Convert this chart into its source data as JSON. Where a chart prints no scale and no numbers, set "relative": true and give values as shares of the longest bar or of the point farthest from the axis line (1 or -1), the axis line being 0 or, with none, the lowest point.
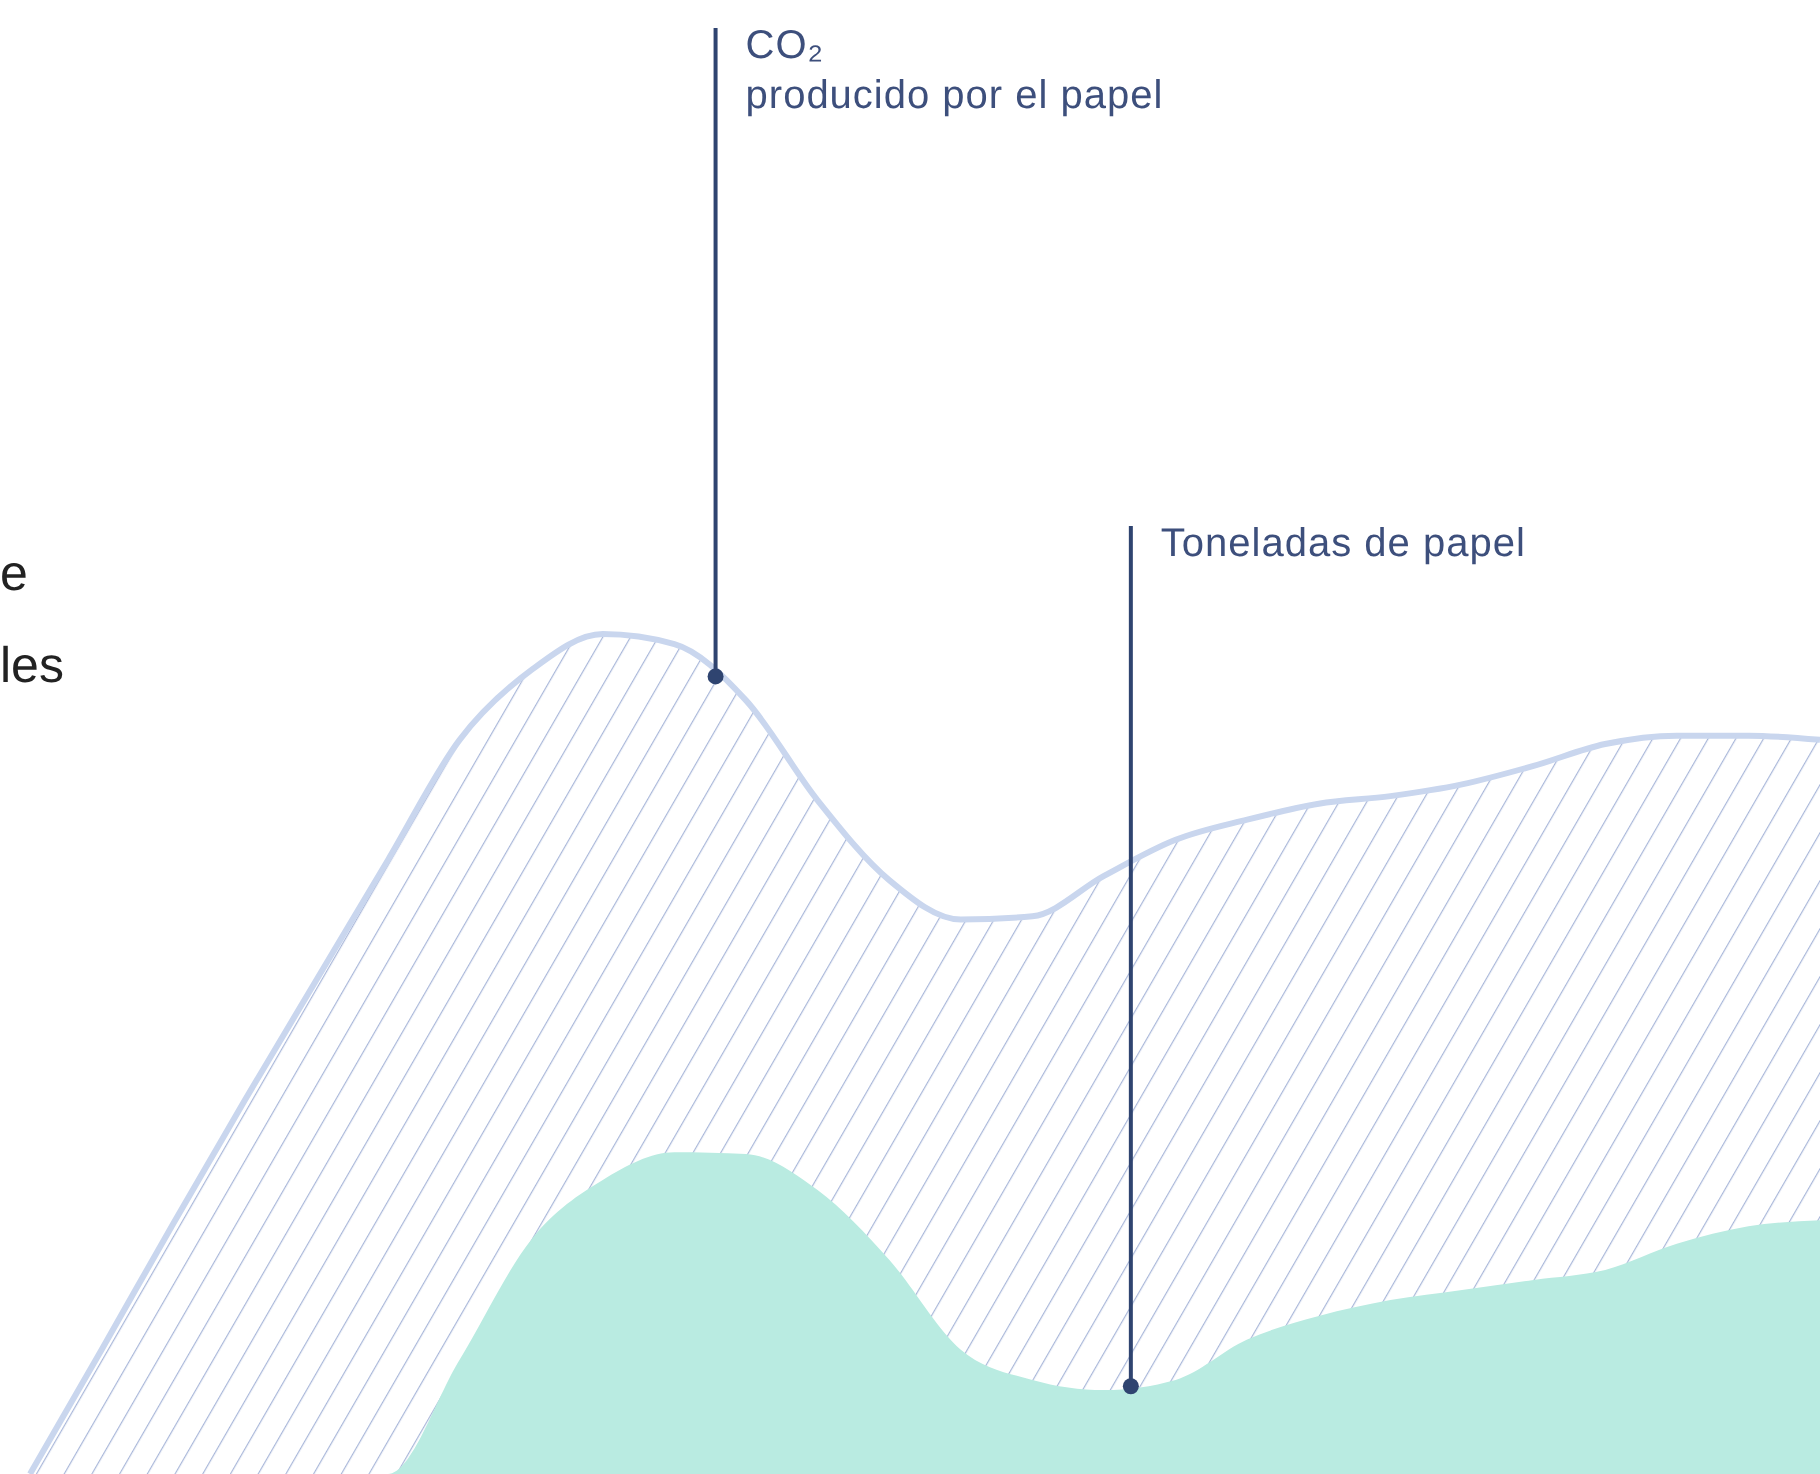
{
  "chart_data": {
    "type": "area",
    "relative": true,
    "categories": [
      null,
      null,
      null,
      null,
      null,
      null,
      null,
      null,
      null,
      null,
      null,
      null,
      null,
      null,
      null,
      null,
      null,
      null,
      null,
      null,
      null,
      null,
      null,
      null,
      null,
      null
    ],
    "series": [
      {
        "name": "CO₂ producido por el papel",
        "color": "#a9b7d9",
        "values": [
          0,
          0.148,
          0.298,
          0.445,
          0.588,
          0.731,
          0.874,
          0.957,
          1,
          0.988,
          0.921,
          0.802,
          0.707,
          0.66,
          0.664,
          0.712,
          0.755,
          0.779,
          0.798,
          0.807,
          0.821,
          0.843,
          0.869,
          0.879,
          0.879,
          0.874
        ]
      },
      {
        "name": "Toneladas de papel",
        "color": "#b9ebe1",
        "values": [
          0,
          0,
          0,
          0,
          0,
          0,
          0.136,
          0.279,
          0.35,
          0.383,
          0.381,
          0.338,
          0.255,
          0.148,
          0.112,
          0.1,
          0.112,
          0.16,
          0.188,
          0.207,
          0.219,
          0.231,
          0.243,
          0.274,
          0.295,
          0.302
        ]
      }
    ],
    "annotations": [
      "e",
      "les"
    ]
  }
}
